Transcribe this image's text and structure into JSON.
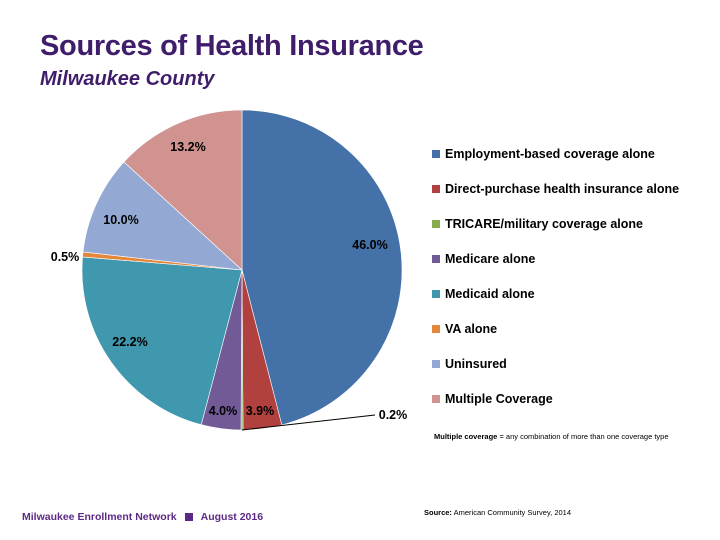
{
  "title": "Sources of Health Insurance",
  "subtitle": "Milwaukee County",
  "chart_data": {
    "type": "pie",
    "title": "Sources of Health Insurance",
    "subtitle": "Milwaukee County",
    "legend_position": "right",
    "start_angle": "12 o'clock, clockwise",
    "slices": [
      {
        "name": "Employment-based coverage alone",
        "value": 46.0,
        "label": "46.0%",
        "color": "#4472a8"
      },
      {
        "name": "Direct-purchase health insurance alone",
        "value": 3.9,
        "label": "3.9%",
        "color": "#b0413e"
      },
      {
        "name": "TRICARE/military coverage alone",
        "value": 0.2,
        "label": "0.2%",
        "color": "#86ad49"
      },
      {
        "name": "Medicare alone",
        "value": 4.0,
        "label": "4.0%",
        "color": "#715a96"
      },
      {
        "name": "Medicaid alone",
        "value": 22.2,
        "label": "22.2%",
        "color": "#3f98ad"
      },
      {
        "name": "VA alone",
        "value": 0.5,
        "label": "0.5%",
        "color": "#e4873a"
      },
      {
        "name": "Uninsured",
        "value": 10.0,
        "label": "10.0%",
        "color": "#93a9d4"
      },
      {
        "name": "Multiple Coverage",
        "value": 13.2,
        "label": "13.2%",
        "color": "#d19390"
      }
    ]
  },
  "note": {
    "bold": "Multiple coverage",
    "text": " = any combination of more than one coverage type"
  },
  "source": {
    "bold": "Source:",
    "text": " American Community Survey, 2014"
  },
  "footer": {
    "org": "Milwaukee Enrollment Network",
    "date": "August 2016",
    "square_color": "#5b2a86"
  }
}
